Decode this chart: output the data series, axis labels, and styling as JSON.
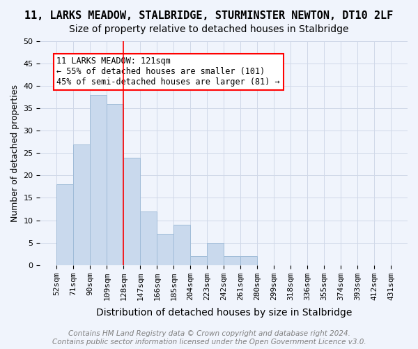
{
  "title": "11, LARKS MEADOW, STALBRIDGE, STURMINSTER NEWTON, DT10 2LF",
  "subtitle": "Size of property relative to detached houses in Stalbridge",
  "xlabel": "Distribution of detached houses by size in Stalbridge",
  "ylabel": "Number of detached properties",
  "bins": [
    "52sqm",
    "71sqm",
    "90sqm",
    "109sqm",
    "128sqm",
    "147sqm",
    "166sqm",
    "185sqm",
    "204sqm",
    "223sqm",
    "242sqm",
    "261sqm",
    "280sqm",
    "299sqm",
    "318sqm",
    "336sqm",
    "355sqm",
    "374sqm",
    "393sqm",
    "412sqm",
    "431sqm"
  ],
  "values": [
    18,
    27,
    38,
    36,
    24,
    12,
    7,
    9,
    2,
    5,
    2,
    2,
    0,
    0,
    0,
    0,
    0,
    0,
    0,
    0
  ],
  "bar_color": "#c9d9ed",
  "bar_edge_color": "#a0bcd8",
  "property_line_x": 128,
  "property_sqm": 121,
  "annotation_text": "11 LARKS MEADOW: 121sqm\n← 55% of detached houses are smaller (101)\n45% of semi-detached houses are larger (81) →",
  "annotation_box_color": "white",
  "annotation_box_edge_color": "red",
  "vline_color": "red",
  "ylim": [
    0,
    50
  ],
  "yticks": [
    0,
    5,
    10,
    15,
    20,
    25,
    30,
    35,
    40,
    45,
    50
  ],
  "grid_color": "#d0d8e8",
  "background_color": "#f0f4fc",
  "footer": "Contains HM Land Registry data © Crown copyright and database right 2024.\nContains public sector information licensed under the Open Government Licence v3.0.",
  "title_fontsize": 11,
  "subtitle_fontsize": 10,
  "xlabel_fontsize": 10,
  "ylabel_fontsize": 9,
  "tick_fontsize": 8,
  "annotation_fontsize": 8.5,
  "footer_fontsize": 7.5
}
